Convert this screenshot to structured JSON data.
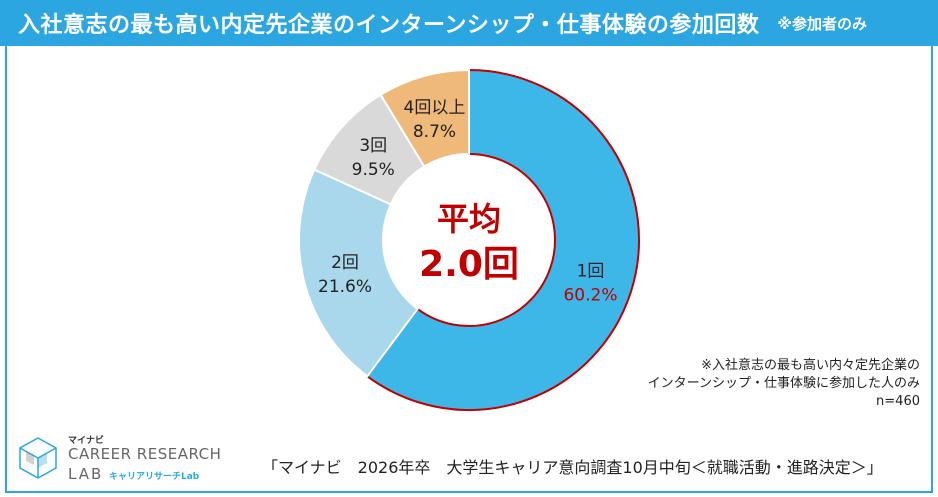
{
  "header": {
    "title": "入社意志の最も高い内定先企業のインターンシップ・仕事体験の参加回数",
    "note": "※参加者のみ"
  },
  "chart_data": {
    "type": "pie",
    "subtype": "donut",
    "title": "入社意志の最も高い内定先企業のインターンシップ・仕事体験の参加回数",
    "categories": [
      "1回",
      "2回",
      "3回",
      "4回以上"
    ],
    "values": [
      60.2,
      21.6,
      9.5,
      8.7
    ],
    "value_labels": [
      "60.2%",
      "21.6%",
      "9.5%",
      "8.7%"
    ],
    "colors": [
      "#3db6e8",
      "#a9d8ec",
      "#d9d9d9",
      "#efb979"
    ],
    "highlight_color": "#c00000",
    "center_label": "平均",
    "center_value": "2.0回"
  },
  "note": {
    "line1": "※入社意志の最も高い内々定先企業の",
    "line2": "インターンシップ・仕事体験に参加した人のみ",
    "line3": "n=460"
  },
  "source": "「マイナビ　2026年卒　大学生キャリア意向調査10月中旬＜就職活動・進路決定＞」",
  "logo": {
    "brand": "マイナビ",
    "main": "CAREER RESEARCH",
    "lab": "LAB",
    "sub": "キャリアリサーチLab"
  }
}
